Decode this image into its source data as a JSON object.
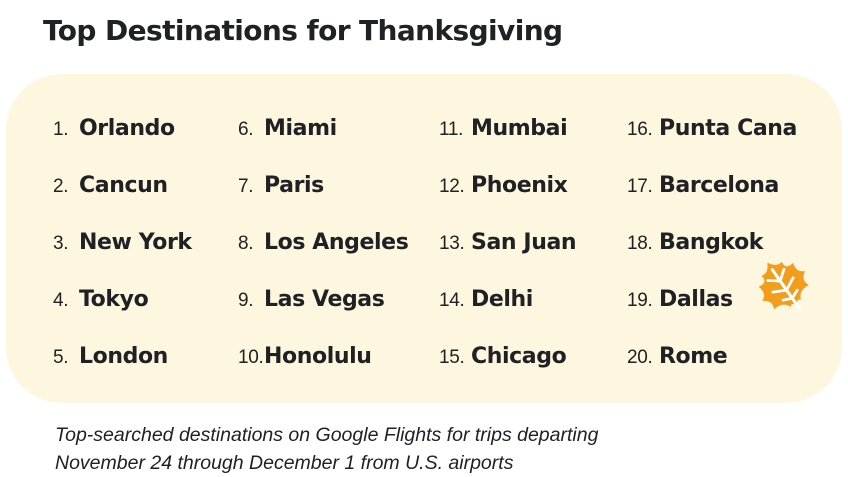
{
  "title": "Top Destinations for Thanksgiving",
  "columns": [
    [
      {
        "rank": "1.",
        "city": "Orlando"
      },
      {
        "rank": "2.",
        "city": "Cancun"
      },
      {
        "rank": "3.",
        "city": "New York"
      },
      {
        "rank": "4.",
        "city": "Tokyo"
      },
      {
        "rank": "5.",
        "city": "London"
      }
    ],
    [
      {
        "rank": "6.",
        "city": "Miami"
      },
      {
        "rank": "7.",
        "city": "Paris"
      },
      {
        "rank": "8.",
        "city": "Los Angeles"
      },
      {
        "rank": "9.",
        "city": "Las Vegas"
      },
      {
        "rank": "10.",
        "city": "Honolulu"
      }
    ],
    [
      {
        "rank": "11.",
        "city": "Mumbai"
      },
      {
        "rank": "12.",
        "city": "Phoenix"
      },
      {
        "rank": "13.",
        "city": "San Juan"
      },
      {
        "rank": "14.",
        "city": "Delhi"
      },
      {
        "rank": "15.",
        "city": "Chicago"
      }
    ],
    [
      {
        "rank": "16.",
        "city": "Punta Cana"
      },
      {
        "rank": "17.",
        "city": "Barcelona"
      },
      {
        "rank": "18.",
        "city": "Bangkok"
      },
      {
        "rank": "19.",
        "city": "Dallas"
      },
      {
        "rank": "20.",
        "city": "Rome"
      }
    ]
  ],
  "caption": {
    "line1": "Top-searched destinations on Google Flights for trips departing",
    "line2": "November 24 through December 1 from U.S. airports"
  },
  "colors": {
    "panel": "#fef7e0",
    "leaf": "#f29d1c",
    "text": "#202124"
  },
  "icon": "autumn-leaf-icon"
}
